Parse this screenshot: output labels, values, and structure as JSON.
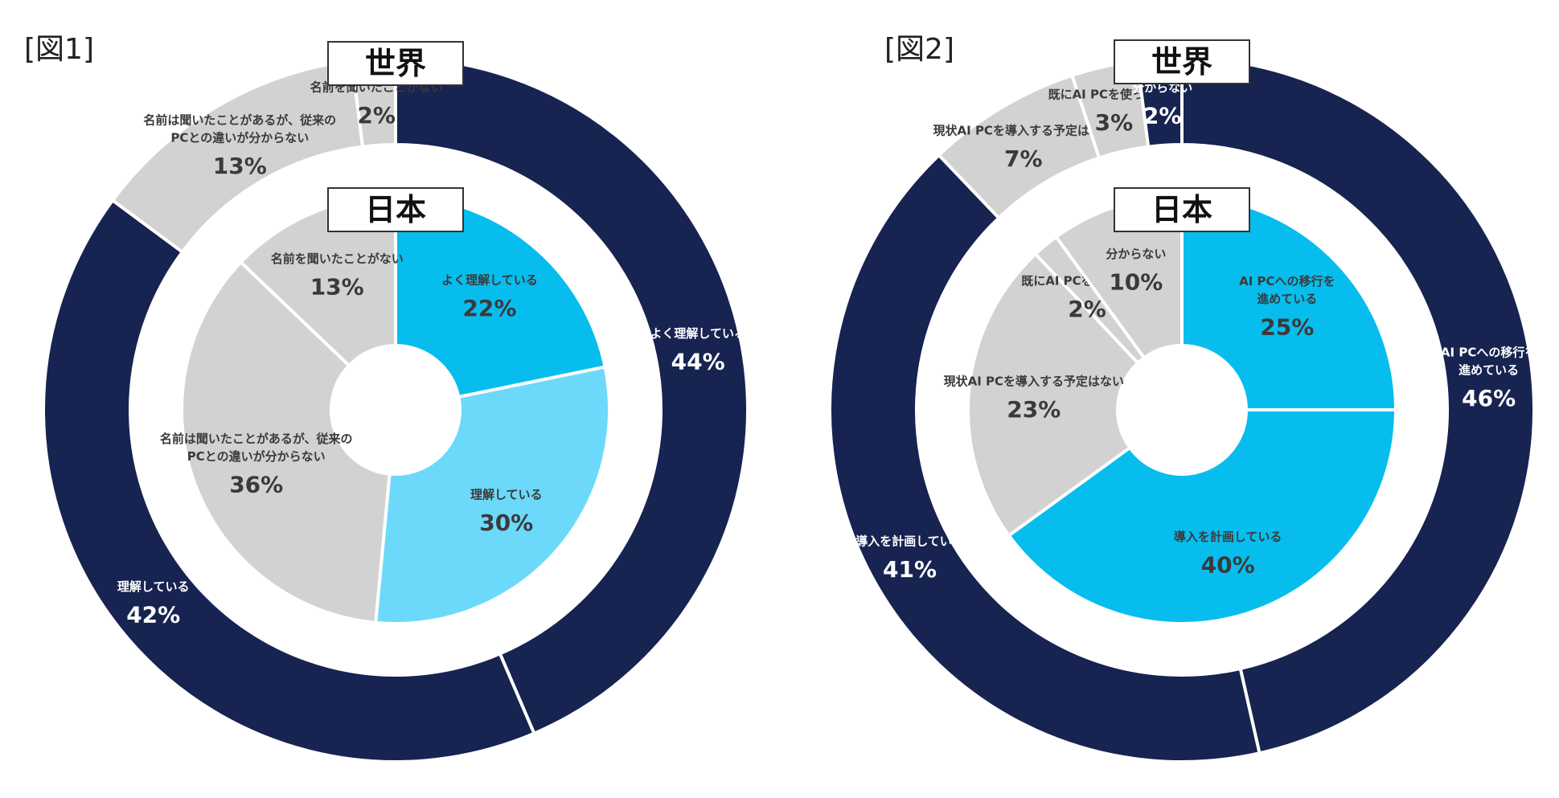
{
  "figures": [
    {
      "label": "[図1]",
      "outer_title": "世界",
      "inner_title": "日本"
    },
    {
      "label": "[図2]",
      "outer_title": "世界",
      "inner_title": "日本"
    }
  ],
  "colors": {
    "navy": "#172350",
    "cyan": "#07BDEE",
    "light_cyan": "#6CD9FB",
    "gray": "#D2D2D2",
    "dark_text": "#3A3A3A",
    "white": "#FFFFFF"
  },
  "chart_data": [
    {
      "type": "pie",
      "title": "[図1]",
      "series": [
        {
          "name": "世界",
          "ring": "outer",
          "slices": [
            {
              "label": [
                "よく理解している"
              ],
              "value": 44,
              "display": "44%",
              "color": "#172350"
            },
            {
              "label": [
                "理解している"
              ],
              "value": 42,
              "display": "42%",
              "color": "#172350"
            },
            {
              "label": [
                "名前は聞いたことがあるが、従来の",
                "PCとの違いが分からない"
              ],
              "value": 13,
              "display": "13%",
              "color": "#D2D2D2"
            },
            {
              "label": [
                "名前を聞いたことがない"
              ],
              "value": 2,
              "display": "2%",
              "color": "#D2D2D2"
            }
          ]
        },
        {
          "name": "日本",
          "ring": "inner",
          "slices": [
            {
              "label": [
                "よく理解している"
              ],
              "value": 22,
              "display": "22%",
              "color": "#07BDEE"
            },
            {
              "label": [
                "理解している"
              ],
              "value": 30,
              "display": "30%",
              "color": "#6CD9FB"
            },
            {
              "label": [
                "名前は聞いたことがあるが、従来の",
                "PCとの違いが分からない"
              ],
              "value": 36,
              "display": "36%",
              "color": "#D2D2D2"
            },
            {
              "label": [
                "名前を聞いたことがない"
              ],
              "value": 13,
              "display": "13%",
              "color": "#D2D2D2"
            }
          ]
        }
      ]
    },
    {
      "type": "pie",
      "title": "[図2]",
      "series": [
        {
          "name": "世界",
          "ring": "outer",
          "slices": [
            {
              "label": [
                "AI PCへの移行を",
                "進めている"
              ],
              "value": 46,
              "display": "46%",
              "color": "#172350"
            },
            {
              "label": [
                "導入を計画している"
              ],
              "value": 41,
              "display": "41%",
              "color": "#172350"
            },
            {
              "label": [
                "現状AI PCを導入する予定はない"
              ],
              "value": 7,
              "display": "7%",
              "color": "#D2D2D2"
            },
            {
              "label": [
                "既にAI PCを使っている"
              ],
              "value": 3,
              "display": "3%",
              "color": "#D2D2D2"
            },
            {
              "label": [
                "分からない"
              ],
              "value": 2,
              "display": "2%",
              "color": "#172350"
            }
          ]
        },
        {
          "name": "日本",
          "ring": "inner",
          "slices": [
            {
              "label": [
                "AI PCへの移行を",
                "進めている"
              ],
              "value": 25,
              "display": "25%",
              "color": "#07BDEE"
            },
            {
              "label": [
                "導入を計画している"
              ],
              "value": 40,
              "display": "40%",
              "color": "#07BDEE"
            },
            {
              "label": [
                "現状AI PCを導入する予定はない"
              ],
              "value": 23,
              "display": "23%",
              "color": "#D2D2D2"
            },
            {
              "label": [
                "既にAI PCを使っている"
              ],
              "value": 2,
              "display": "2%",
              "color": "#D2D2D2"
            },
            {
              "label": [
                "分からない"
              ],
              "value": 10,
              "display": "10%",
              "color": "#D2D2D2"
            }
          ]
        }
      ]
    }
  ]
}
